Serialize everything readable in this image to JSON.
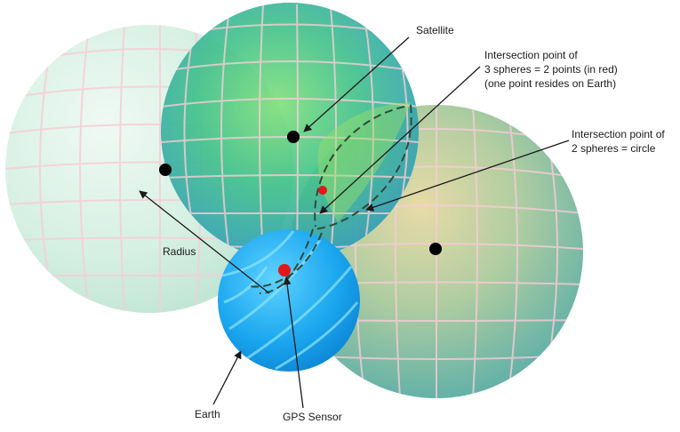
{
  "labels": {
    "satellite": "Satellite",
    "intersection_three_line1": "Intersection point of",
    "intersection_three_line2": "3 spheres = 2 points (in red)",
    "intersection_three_line3": "(one point resides on Earth)",
    "intersection_two_line1": "Intersection point of",
    "intersection_two_line2": "2 spheres = circle",
    "radius": "Radius",
    "earth": "Earth",
    "gps_sensor": "GPS Sensor"
  },
  "colors": {
    "left_sphere": "#cfeee0",
    "top_sphere": "#3bb6c9",
    "right_sphere": "#7fc59a",
    "earth": "#19a8ee",
    "intersection_point": "#e11818",
    "satellite_dot": "#000000",
    "grid_line": "#f3c9d4"
  },
  "icons": {
    "satellite": "black-dot",
    "intersection": "red-dot"
  }
}
